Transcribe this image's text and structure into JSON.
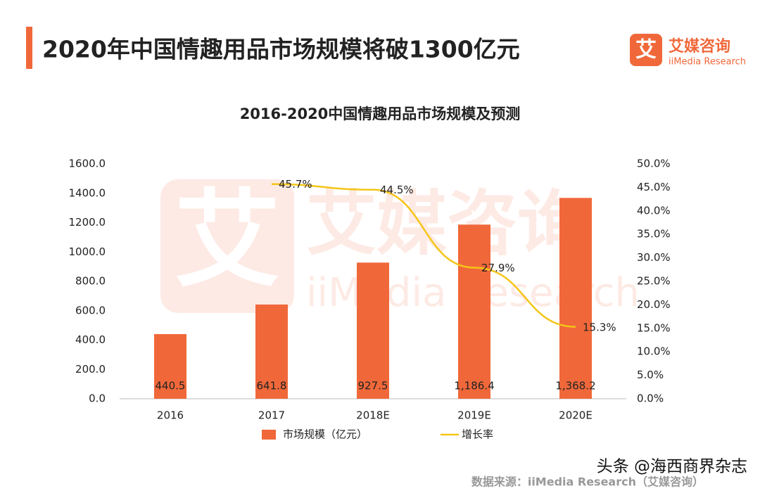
{
  "header": {
    "title": "2020年中国情趣用品市场规模将破1300亿元",
    "logo_name": "艾媒咨询",
    "logo_en": "iiMedia Research",
    "logo_mark": "艾"
  },
  "background_watermark": {
    "name": "艾媒咨询",
    "en": "iiMedia Research",
    "mark": "艾"
  },
  "chart_data": {
    "type": "bar",
    "title": "2016-2020中国情趣用品市场规模及预测",
    "categories": [
      "2016",
      "2017",
      "2018E",
      "2019E",
      "2020E"
    ],
    "series": [
      {
        "name": "市场规模（亿元）",
        "type": "bar",
        "color": "#f0683a",
        "values": [
          440.5,
          641.8,
          927.5,
          1186.4,
          1368.2
        ],
        "value_labels": [
          "440.5",
          "641.8",
          "927.5",
          "1,186.4",
          "1,368.2"
        ]
      },
      {
        "name": "增长率",
        "type": "line",
        "axis": "y2",
        "color": "#f5c518",
        "values": [
          null,
          45.7,
          44.5,
          27.9,
          15.3
        ],
        "value_labels": [
          null,
          "45.7%",
          "44.5%",
          "27.9%",
          "15.3%"
        ]
      }
    ],
    "ylim": [
      0,
      1600
    ],
    "yticks": [
      {
        "value": 0,
        "label": "0.0"
      },
      {
        "value": 200,
        "label": "200.0"
      },
      {
        "value": 400,
        "label": "400.0"
      },
      {
        "value": 600,
        "label": "600.0"
      },
      {
        "value": 800,
        "label": "800.0"
      },
      {
        "value": 1000,
        "label": "1000.0"
      },
      {
        "value": 1200,
        "label": "1200.0"
      },
      {
        "value": 1400,
        "label": "1400.0"
      },
      {
        "value": 1600,
        "label": "1600.0"
      }
    ],
    "y2lim": [
      0,
      50
    ],
    "y2ticks": [
      {
        "value": 0,
        "label": "0.0%"
      },
      {
        "value": 5,
        "label": "5.0%"
      },
      {
        "value": 10,
        "label": "10.0%"
      },
      {
        "value": 15,
        "label": "15.0%"
      },
      {
        "value": 20,
        "label": "20.0%"
      },
      {
        "value": 25,
        "label": "25.0%"
      },
      {
        "value": 30,
        "label": "30.0%"
      },
      {
        "value": 35,
        "label": "35.0%"
      },
      {
        "value": 40,
        "label": "40.0%"
      },
      {
        "value": 45,
        "label": "45.0%"
      },
      {
        "value": 50,
        "label": "50.0%"
      }
    ],
    "grid": false,
    "legend": "bottom"
  },
  "source": "数据来源：iiMedia Research（艾媒咨询）",
  "watermark": "头条 @海西商界杂志"
}
